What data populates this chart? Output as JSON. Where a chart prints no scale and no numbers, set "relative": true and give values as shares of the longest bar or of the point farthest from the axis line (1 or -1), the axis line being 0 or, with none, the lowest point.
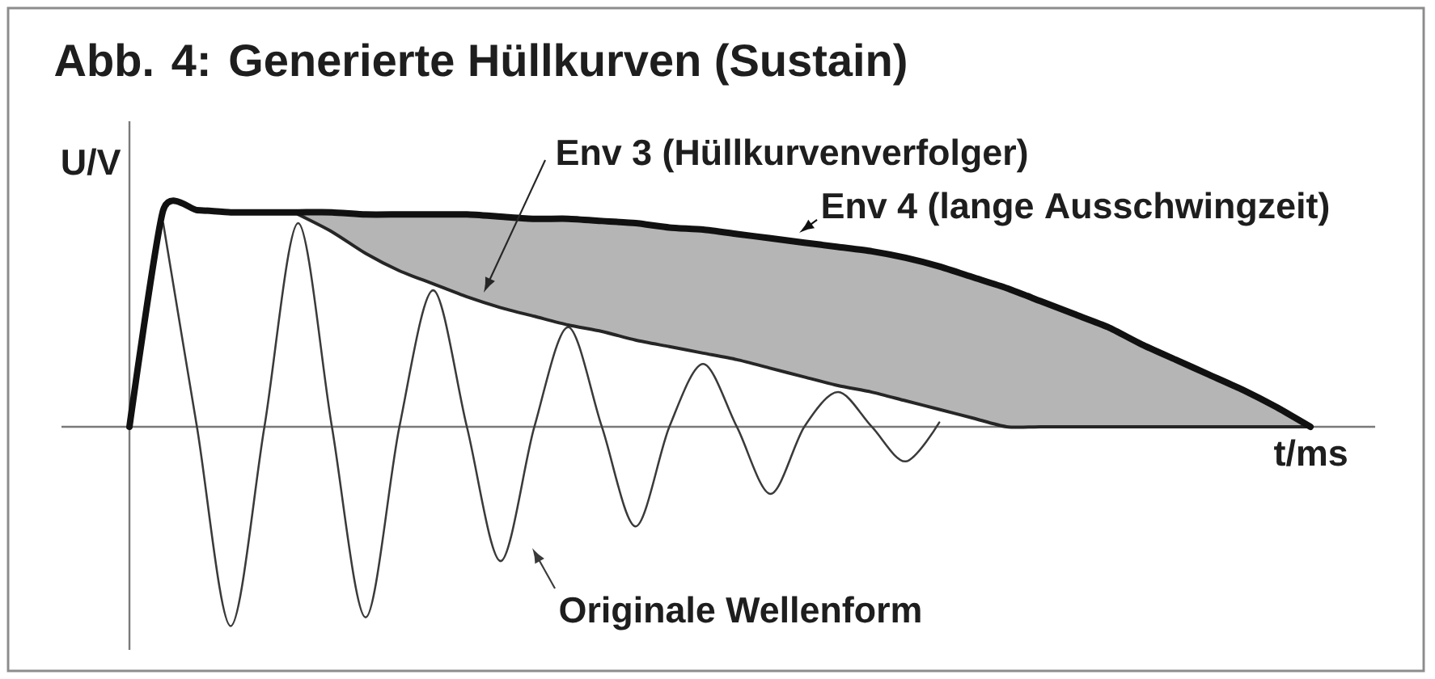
{
  "chart_data": {
    "type": "line",
    "title": "Abb. 4: Generierte Hüllkurven (Sustain)",
    "xlabel": "t/ms",
    "ylabel": "U/V",
    "relative": true,
    "categories": [
      null,
      null,
      null,
      null,
      null,
      null,
      null,
      null,
      null,
      null,
      null,
      null,
      null,
      null,
      null,
      null,
      null,
      null,
      null,
      null,
      null,
      null,
      null,
      null,
      null,
      null,
      null,
      null,
      null,
      null,
      null,
      null,
      null,
      null,
      null,
      null
    ],
    "series": [
      {
        "name": "Originale Wellenform",
        "color": "#3a3a3a",
        "values": [
          null,
          0.94,
          0,
          -0.92,
          0,
          0.94,
          0,
          -0.88,
          0,
          0.63,
          0,
          -0.62,
          0,
          0.46,
          0,
          -0.46,
          0,
          0.29,
          0,
          -0.31,
          0,
          0.16,
          0,
          -0.16,
          0.02,
          null,
          null,
          null,
          null,
          null,
          null,
          null,
          null,
          null,
          null,
          null
        ]
      },
      {
        "name": "Env 3 (Hüllkurvenverfolger)",
        "color": "#262626",
        "values": [
          null,
          null,
          null,
          null,
          null,
          0.98,
          0.9,
          0.8,
          0.72,
          0.66,
          0.6,
          0.55,
          0.51,
          0.47,
          0.44,
          0.4,
          0.37,
          0.34,
          0.31,
          0.27,
          0.23,
          0.19,
          0.16,
          0.12,
          0.08,
          0.04,
          0,
          0,
          0,
          0,
          0,
          0,
          0,
          0,
          0,
          0
        ]
      },
      {
        "name": "Env 4 (lange Ausschwingzeit)",
        "color": "#111111",
        "values": [
          0,
          1,
          1,
          0.99,
          0.99,
          0.99,
          0.99,
          0.98,
          0.98,
          0.98,
          0.98,
          0.97,
          0.96,
          0.96,
          0.95,
          0.94,
          0.92,
          0.91,
          0.89,
          0.87,
          0.85,
          0.83,
          0.81,
          0.78,
          0.74,
          0.69,
          0.64,
          0.58,
          0.52,
          0.46,
          0.38,
          0.31,
          0.24,
          0.17,
          0.09,
          0
        ],
        "lower": [
          null,
          null,
          null,
          null,
          null,
          0.98,
          0.9,
          0.8,
          0.72,
          0.66,
          0.6,
          0.55,
          0.51,
          0.47,
          0.44,
          0.4,
          0.37,
          0.34,
          0.31,
          0.27,
          0.23,
          0.19,
          0.16,
          0.12,
          0.08,
          0.04,
          0,
          0,
          0,
          0,
          0,
          0,
          0,
          0,
          0,
          0
        ],
        "upper": [
          null,
          null,
          null,
          null,
          null,
          0.99,
          0.99,
          0.98,
          0.98,
          0.98,
          0.98,
          0.97,
          0.96,
          0.96,
          0.95,
          0.94,
          0.92,
          0.91,
          0.89,
          0.87,
          0.85,
          0.83,
          0.81,
          0.78,
          0.74,
          0.69,
          0.64,
          0.58,
          0.52,
          0.46,
          0.38,
          0.31,
          0.24,
          0.17,
          0.09,
          0
        ]
      }
    ]
  }
}
